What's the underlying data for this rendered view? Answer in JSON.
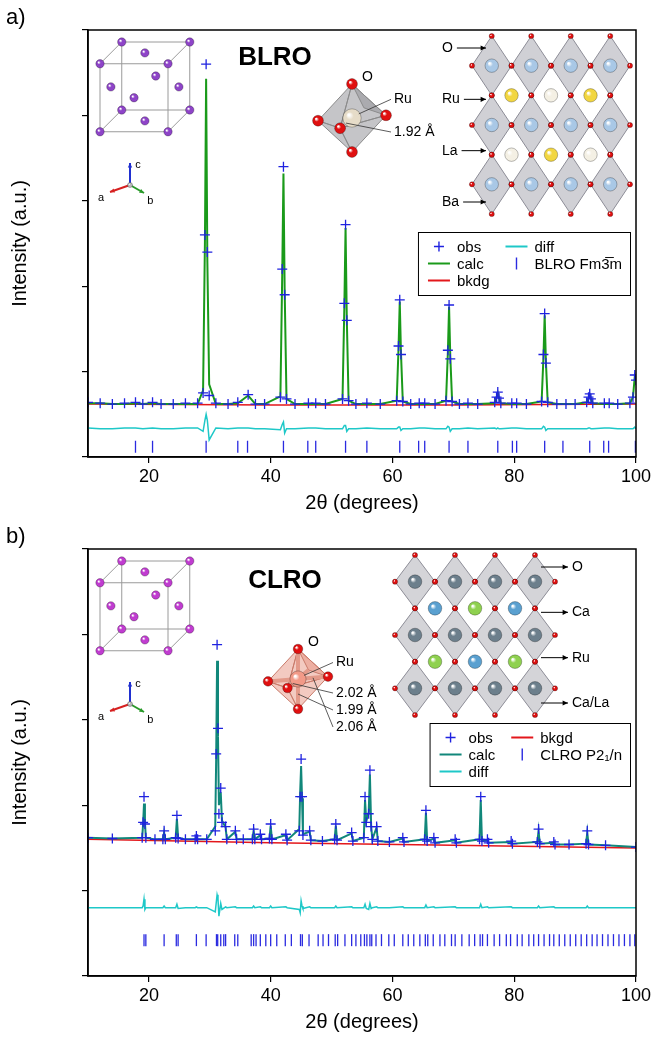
{
  "chart_data": [
    {
      "type": "scatter",
      "panel": "a)",
      "title": "BLRO",
      "x_label": "2θ (degrees)",
      "y_label": "Intensity (a.u.)",
      "xlim": [
        10,
        100
      ],
      "xticks": [
        20,
        40,
        60,
        80,
        100
      ],
      "ylim": [
        0,
        5
      ],
      "yticks": [
        0,
        1,
        2,
        3,
        4,
        5
      ],
      "grid": false,
      "tick_labels": "x",
      "legend": "right",
      "x": [
        10,
        12,
        14,
        16,
        17.8,
        19,
        20.6,
        22,
        24,
        26,
        28,
        28.9,
        29.2,
        29.4,
        29.6,
        29.9,
        31,
        33,
        34.6,
        36.3,
        37.5,
        39,
        41.6,
        41.9,
        42.1,
        42.3,
        42.6,
        44,
        46.2,
        47.4,
        49,
        51.8,
        52.1,
        52.3,
        52.5,
        52.8,
        54,
        55.8,
        58,
        60.7,
        61,
        61.2,
        61.4,
        61.7,
        63,
        64.4,
        65.3,
        67,
        68.8,
        69.1,
        69.3,
        69.5,
        69.8,
        71,
        72.4,
        74,
        76.8,
        77.1,
        77.3,
        77.5,
        77.8,
        79.6,
        80.4,
        82,
        84.5,
        84.8,
        85,
        85.2,
        85.5,
        87,
        88.5,
        90,
        91.9,
        92.2,
        92.4,
        92.6,
        92.9,
        94.8,
        95.6,
        97,
        99,
        99.5,
        99.8,
        100
      ],
      "series": [
        {
          "name": "obs",
          "type": "scatter",
          "marker": "cross",
          "color": "#1f22e0",
          "values": [
            0.64,
            0.63,
            0.62,
            0.63,
            0.64,
            0.62,
            0.64,
            0.62,
            0.62,
            0.63,
            0.63,
            0.75,
            2.6,
            4.6,
            2.4,
            0.72,
            0.63,
            0.62,
            0.64,
            0.73,
            0.62,
            0.62,
            0.7,
            2.2,
            3.4,
            1.9,
            0.68,
            0.62,
            0.63,
            0.63,
            0.62,
            0.68,
            1.8,
            2.72,
            1.6,
            0.66,
            0.62,
            0.63,
            0.62,
            0.66,
            1.3,
            1.84,
            1.2,
            0.65,
            0.62,
            0.63,
            0.63,
            0.62,
            0.66,
            1.25,
            1.78,
            1.15,
            0.65,
            0.62,
            0.63,
            0.62,
            0.64,
            0.7,
            0.76,
            0.69,
            0.63,
            0.63,
            0.63,
            0.62,
            0.65,
            1.2,
            1.68,
            1.1,
            0.64,
            0.62,
            0.62,
            0.62,
            0.64,
            0.7,
            0.74,
            0.68,
            0.63,
            0.63,
            0.63,
            0.62,
            0.63,
            0.7,
            0.96,
            0.9
          ]
        },
        {
          "name": "calc",
          "type": "line",
          "line_style": "solid",
          "color": "#1a9a1a",
          "values": [
            0.63,
            0.63,
            0.62,
            0.62,
            0.63,
            0.62,
            0.63,
            0.62,
            0.62,
            0.62,
            0.62,
            0.78,
            2.5,
            4.43,
            2.3,
            0.85,
            0.62,
            0.62,
            0.63,
            0.72,
            0.62,
            0.62,
            0.71,
            2.15,
            3.32,
            1.95,
            0.68,
            0.62,
            0.62,
            0.62,
            0.62,
            0.68,
            1.76,
            2.68,
            1.63,
            0.66,
            0.62,
            0.62,
            0.62,
            0.66,
            1.28,
            1.82,
            1.22,
            0.65,
            0.62,
            0.62,
            0.62,
            0.62,
            0.66,
            1.22,
            1.76,
            1.18,
            0.65,
            0.62,
            0.62,
            0.62,
            0.63,
            0.7,
            0.75,
            0.69,
            0.63,
            0.62,
            0.62,
            0.62,
            0.65,
            1.17,
            1.66,
            1.12,
            0.64,
            0.62,
            0.62,
            0.62,
            0.64,
            0.69,
            0.73,
            0.68,
            0.63,
            0.62,
            0.62,
            0.62,
            0.63,
            0.7,
            0.94,
            0.9
          ]
        },
        {
          "name": "bkdg",
          "type": "line",
          "line_style": "solid",
          "color": "#e3171b",
          "x": [
            10,
            40,
            70,
            100
          ],
          "values": [
            0.62,
            0.61,
            0.61,
            0.62
          ]
        },
        {
          "name": "diff",
          "type": "line",
          "line_style": "solid",
          "color": "#1ec8c8",
          "values": [
            0.34,
            0.33,
            0.33,
            0.34,
            0.34,
            0.33,
            0.34,
            0.33,
            0.33,
            0.34,
            0.34,
            0.3,
            0.43,
            0.5,
            0.43,
            0.2,
            0.34,
            0.33,
            0.34,
            0.34,
            0.33,
            0.33,
            0.32,
            0.38,
            0.41,
            0.28,
            0.33,
            0.33,
            0.34,
            0.34,
            0.33,
            0.33,
            0.37,
            0.37,
            0.3,
            0.33,
            0.33,
            0.34,
            0.33,
            0.33,
            0.35,
            0.35,
            0.31,
            0.33,
            0.33,
            0.34,
            0.34,
            0.33,
            0.33,
            0.36,
            0.35,
            0.3,
            0.33,
            0.33,
            0.34,
            0.33,
            0.34,
            0.33,
            0.34,
            0.33,
            0.33,
            0.34,
            0.34,
            0.33,
            0.33,
            0.36,
            0.35,
            0.31,
            0.33,
            0.33,
            0.33,
            0.33,
            0.33,
            0.34,
            0.34,
            0.33,
            0.33,
            0.34,
            0.34,
            0.33,
            0.33,
            0.33,
            0.35,
            0.33
          ]
        },
        {
          "name": "BLRO Fm3̅m",
          "type": "scatter",
          "marker": "vline",
          "color": "#2a2ae0",
          "x": [
            17.8,
            20.6,
            29.4,
            34.6,
            36.2,
            42.1,
            46.1,
            47.4,
            52.3,
            55.8,
            61.2,
            64.3,
            65.3,
            69.3,
            72.4,
            77.3,
            79.7,
            80.4,
            85,
            88,
            92.4,
            94.7,
            95.5,
            99.9
          ],
          "values": [
            0.12,
            0.12,
            0.12,
            0.12,
            0.12,
            0.12,
            0.12,
            0.12,
            0.12,
            0.12,
            0.12,
            0.12,
            0.12,
            0.12,
            0.12,
            0.12,
            0.12,
            0.12,
            0.12,
            0.12,
            0.12,
            0.12,
            0.12,
            0.12
          ]
        }
      ],
      "annotations": {
        "structure_labels": [
          "O",
          "Ru",
          "La",
          "Ba"
        ],
        "octahedron_labels": [
          "O",
          "Ru",
          "1.92 Å"
        ],
        "axis_labels": [
          "a",
          "b",
          "c"
        ]
      }
    },
    {
      "type": "scatter",
      "panel": "b)",
      "title": "CLRO",
      "x_label": "2θ (degrees)",
      "y_label": "Intensity (a.u.)",
      "xlim": [
        10,
        100
      ],
      "xticks": [
        20,
        40,
        60,
        80,
        100
      ],
      "ylim": [
        0,
        5
      ],
      "yticks": [
        0,
        1,
        2,
        3,
        4,
        5
      ],
      "grid": false,
      "tick_labels": "x",
      "legend": "right",
      "x": [
        10,
        14,
        18.9,
        19.05,
        19.2,
        19.35,
        19.5,
        21,
        22.3,
        22.5,
        22.7,
        24.4,
        24.6,
        24.8,
        26,
        27.6,
        27.8,
        28,
        29.5,
        30.9,
        31.05,
        31.2,
        31.35,
        31.5,
        31.8,
        32,
        32.6,
        32.8,
        34.2,
        34.4,
        35.5,
        37,
        37.2,
        37.4,
        38.3,
        38.5,
        39.8,
        40,
        40.2,
        42.5,
        42.7,
        44.7,
        44.85,
        45,
        45.15,
        45.3,
        46.4,
        46.6,
        48.5,
        50.5,
        50.7,
        50.9,
        53.3,
        53.5,
        55.3,
        55.5,
        55.7,
        56.1,
        56.3,
        56.5,
        56.7,
        57.4,
        57.6,
        59.5,
        61.7,
        61.9,
        65.3,
        65.5,
        65.7,
        66.8,
        67,
        70.3,
        70.5,
        74.3,
        74.5,
        74.7,
        75.6,
        75.8,
        79.5,
        79.7,
        83.8,
        84,
        84.2,
        86.5,
        86.7,
        89,
        91.8,
        92,
        92.2,
        95,
        100
      ],
      "series": [
        {
          "name": "obs",
          "type": "scatter",
          "marker": "cross",
          "color": "#1f22e0",
          "values": [
            1.62,
            1.61,
            1.62,
            1.8,
            2.1,
            1.78,
            1.62,
            1.6,
            1.6,
            1.7,
            1.6,
            1.62,
            1.88,
            1.61,
            1.6,
            1.6,
            1.64,
            1.6,
            1.6,
            1.7,
            2.6,
            3.88,
            2.9,
            1.9,
            2.2,
            1.8,
            1.75,
            1.6,
            1.7,
            1.6,
            1.6,
            1.6,
            1.72,
            1.6,
            1.66,
            1.6,
            1.61,
            1.78,
            1.6,
            1.66,
            1.59,
            1.7,
            2.1,
            2.54,
            2.1,
            1.65,
            1.7,
            1.59,
            1.58,
            1.6,
            1.78,
            1.59,
            1.68,
            1.58,
            1.62,
            2.1,
            1.8,
            1.9,
            2.41,
            1.75,
            1.6,
            1.75,
            1.58,
            1.57,
            1.62,
            1.57,
            1.6,
            1.94,
            1.58,
            1.62,
            1.56,
            1.6,
            1.56,
            1.6,
            2.1,
            1.58,
            1.6,
            1.56,
            1.58,
            1.55,
            1.57,
            1.72,
            1.55,
            1.57,
            1.54,
            1.54,
            1.55,
            1.7,
            1.54,
            1.53,
            1.51
          ]
        },
        {
          "name": "calc",
          "type": "line",
          "line_style": "solid",
          "color": "#11877a",
          "values": [
            1.62,
            1.61,
            1.62,
            1.78,
            2.02,
            1.8,
            1.62,
            1.6,
            1.6,
            1.68,
            1.6,
            1.62,
            1.84,
            1.62,
            1.6,
            1.6,
            1.63,
            1.6,
            1.6,
            1.75,
            2.55,
            3.69,
            2.8,
            2.0,
            2.15,
            1.82,
            1.74,
            1.6,
            1.69,
            1.6,
            1.6,
            1.6,
            1.7,
            1.6,
            1.65,
            1.6,
            1.61,
            1.76,
            1.6,
            1.65,
            1.59,
            1.72,
            2.16,
            2.46,
            2.08,
            1.66,
            1.69,
            1.59,
            1.58,
            1.6,
            1.76,
            1.59,
            1.67,
            1.58,
            1.62,
            2.06,
            1.81,
            1.92,
            2.36,
            1.76,
            1.6,
            1.74,
            1.58,
            1.57,
            1.61,
            1.57,
            1.6,
            1.91,
            1.58,
            1.61,
            1.56,
            1.59,
            1.56,
            1.6,
            2.06,
            1.58,
            1.59,
            1.56,
            1.57,
            1.55,
            1.57,
            1.7,
            1.55,
            1.56,
            1.54,
            1.54,
            1.55,
            1.68,
            1.54,
            1.53,
            1.51
          ]
        },
        {
          "name": "diff",
          "type": "line",
          "line_style": "solid",
          "color": "#1ec8c8",
          "values": [
            0.8,
            0.8,
            0.8,
            0.82,
            0.9,
            0.78,
            0.8,
            0.8,
            0.8,
            0.82,
            0.8,
            0.8,
            0.84,
            0.79,
            0.8,
            0.8,
            0.81,
            0.8,
            0.8,
            0.75,
            0.85,
            0.95,
            0.9,
            0.7,
            0.85,
            0.78,
            0.81,
            0.8,
            0.81,
            0.8,
            0.8,
            0.8,
            0.82,
            0.8,
            0.81,
            0.8,
            0.8,
            0.82,
            0.8,
            0.81,
            0.8,
            0.78,
            0.74,
            0.88,
            0.82,
            0.79,
            0.81,
            0.8,
            0.8,
            0.8,
            0.82,
            0.8,
            0.81,
            0.8,
            0.8,
            0.84,
            0.79,
            0.78,
            0.85,
            0.79,
            0.8,
            0.81,
            0.8,
            0.8,
            0.81,
            0.8,
            0.8,
            0.83,
            0.8,
            0.81,
            0.8,
            0.81,
            0.8,
            0.8,
            0.84,
            0.8,
            0.81,
            0.8,
            0.81,
            0.8,
            0.8,
            0.82,
            0.8,
            0.81,
            0.8,
            0.8,
            0.8,
            0.82,
            0.8,
            0.8,
            0.8
          ]
        },
        {
          "name": "bkgd",
          "type": "line",
          "line_style": "solid",
          "color": "#e3171b",
          "x": [
            10,
            40,
            70,
            100
          ],
          "values": [
            1.6,
            1.56,
            1.53,
            1.5
          ]
        },
        {
          "name": "CLRO P2₁/n",
          "type": "scatter",
          "marker": "vline",
          "color": "#2a2ae0",
          "x": [
            19.2,
            19.5,
            22.5,
            24.5,
            24.8,
            27.8,
            29.4,
            31.1,
            31.3,
            31.8,
            32.3,
            32.6,
            34.1,
            34.6,
            36.8,
            37.2,
            37.6,
            38.3,
            39.2,
            40,
            41,
            42.4,
            43.4,
            44.9,
            45.2,
            46.3,
            47.8,
            48.6,
            49.5,
            50.6,
            51,
            52.2,
            53.3,
            54,
            54.8,
            55.4,
            55.8,
            56.3,
            56.6,
            57.3,
            58.2,
            59.4,
            60.3,
            61.7,
            62.6,
            63.5,
            64.5,
            65.4,
            65.8,
            66.7,
            67.8,
            68.6,
            69.7,
            70.3,
            71.4,
            72.6,
            73.5,
            74.4,
            74.8,
            75.6,
            76.7,
            77.6,
            78.7,
            79.4,
            80.5,
            81.3,
            82.4,
            83.2,
            84,
            84.9,
            85.8,
            86.5,
            87.4,
            88.3,
            89.2,
            90.1,
            91,
            91.9,
            92.8,
            93.6,
            94.5,
            95.4,
            96.3,
            97.2,
            98.1,
            99,
            99.8
          ],
          "values": [
            0.42,
            0.42,
            0.42,
            0.42,
            0.42,
            0.42,
            0.42,
            0.42,
            0.42,
            0.42,
            0.42,
            0.42,
            0.42,
            0.42,
            0.42,
            0.42,
            0.42,
            0.42,
            0.42,
            0.42,
            0.42,
            0.42,
            0.42,
            0.42,
            0.42,
            0.42,
            0.42,
            0.42,
            0.42,
            0.42,
            0.42,
            0.42,
            0.42,
            0.42,
            0.42,
            0.42,
            0.42,
            0.42,
            0.42,
            0.42,
            0.42,
            0.42,
            0.42,
            0.42,
            0.42,
            0.42,
            0.42,
            0.42,
            0.42,
            0.42,
            0.42,
            0.42,
            0.42,
            0.42,
            0.42,
            0.42,
            0.42,
            0.42,
            0.42,
            0.42,
            0.42,
            0.42,
            0.42,
            0.42,
            0.42,
            0.42,
            0.42,
            0.42,
            0.42,
            0.42,
            0.42,
            0.42,
            0.42,
            0.42,
            0.42,
            0.42,
            0.42,
            0.42,
            0.42,
            0.42,
            0.42,
            0.42,
            0.42,
            0.42,
            0.42,
            0.42,
            0.42
          ]
        }
      ],
      "annotations": {
        "structure_labels": [
          "O",
          "Ca",
          "Ru",
          "Ca/La"
        ],
        "octahedron_labels": [
          "O",
          "Ru",
          "2.02 Å",
          "1.99 Å",
          "2.06 Å"
        ],
        "axis_labels": [
          "a",
          "b",
          "c"
        ]
      }
    }
  ]
}
